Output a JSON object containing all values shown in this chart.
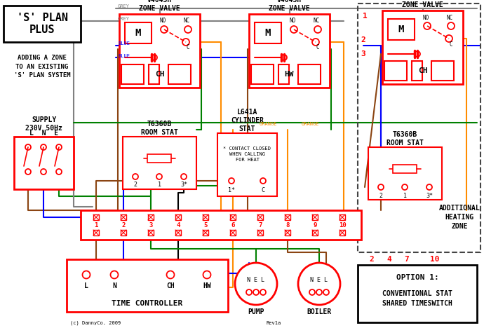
{
  "bg_color": "#ffffff",
  "RED": "#ff0000",
  "GREY": "#808080",
  "BLUE": "#0000ff",
  "GREEN": "#008000",
  "BROWN": "#8B4513",
  "ORANGE": "#FF8C00",
  "BLACK": "#000000",
  "title_line1": "'S' PLAN",
  "title_line2": "PLUS",
  "subtitle": "ADDING A ZONE\nTO AN EXISTING\n'S' PLAN SYSTEM",
  "supply_text": "SUPPLY\n230V 50Hz",
  "lne": "L  N  E",
  "zv_title": "V4043H\nZONE VALVE",
  "rs_title": "T6360B\nROOM STAT",
  "cs_title": "L641A\nCYLINDER\nSTAT",
  "contact_note": "* CONTACT CLOSED\nWHEN CALLING\nFOR HEAT",
  "tc_label": "TIME CONTROLLER",
  "pump_label": "PUMP",
  "boiler_label": "BOILER",
  "nel": "N E L",
  "option_title": "OPTION 1:",
  "option_body": "CONVENTIONAL STAT\nSHARED TIMESWITCH",
  "add_zone_label": "ADDITIONAL\nHEATING\nZONE",
  "copyright": "(c) DannyCo. 2009",
  "rev": "Rev1a"
}
